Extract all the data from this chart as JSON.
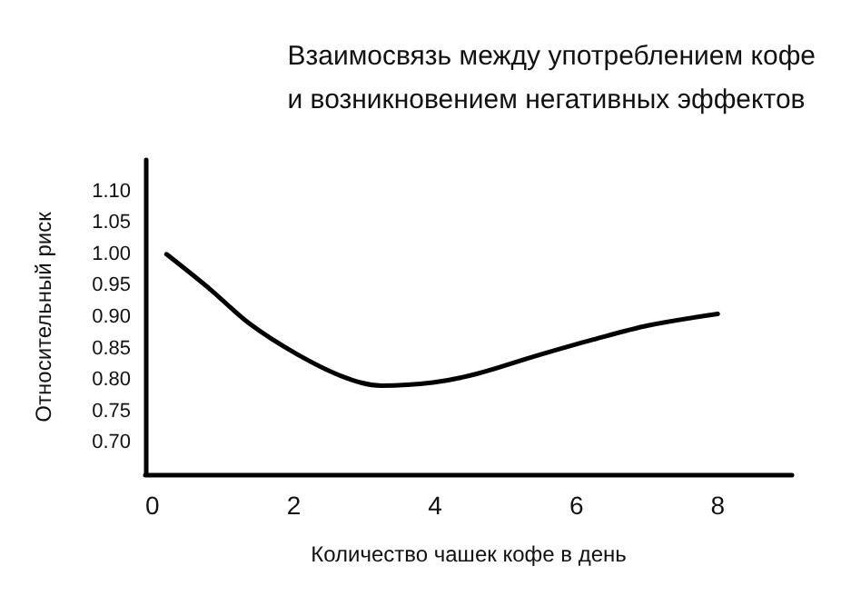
{
  "chart_data": {
    "type": "line",
    "title": "Взаимосвязь между употреблением кофе\nи возникновением негативных эффектов",
    "xlabel": "Количество чашек кофе в день",
    "ylabel": "Относительный риск",
    "x": [
      0.2,
      0.82,
      1.38,
      2.03,
      2.68,
      3.24,
      3.97,
      4.6,
      5.42,
      6.23,
      7.03,
      8.0
    ],
    "series": [
      {
        "color": "#000000",
        "values": [
          1.0,
          0.944,
          0.889,
          0.842,
          0.806,
          0.791,
          0.796,
          0.81,
          0.838,
          0.864,
          0.887,
          0.905
        ]
      }
    ],
    "xlim": [
      -0.1,
      9.05
    ],
    "xticks": [
      0,
      2,
      4,
      6,
      8
    ],
    "ylim": [
      0.65,
      1.15
    ],
    "yticks": [
      {
        "value": 0.7,
        "label": "0.70"
      },
      {
        "value": 0.75,
        "label": "0.75"
      },
      {
        "value": 0.8,
        "label": "0.80"
      },
      {
        "value": 0.85,
        "label": "0.85"
      },
      {
        "value": 0.9,
        "label": "0.90"
      },
      {
        "value": 0.95,
        "label": "0.95"
      },
      {
        "value": 1.0,
        "label": "1.00"
      },
      {
        "value": 1.05,
        "label": "1.05"
      },
      {
        "value": 1.1,
        "label": "1.10"
      }
    ],
    "grid": false,
    "marker": "none",
    "line_style": "solid"
  }
}
